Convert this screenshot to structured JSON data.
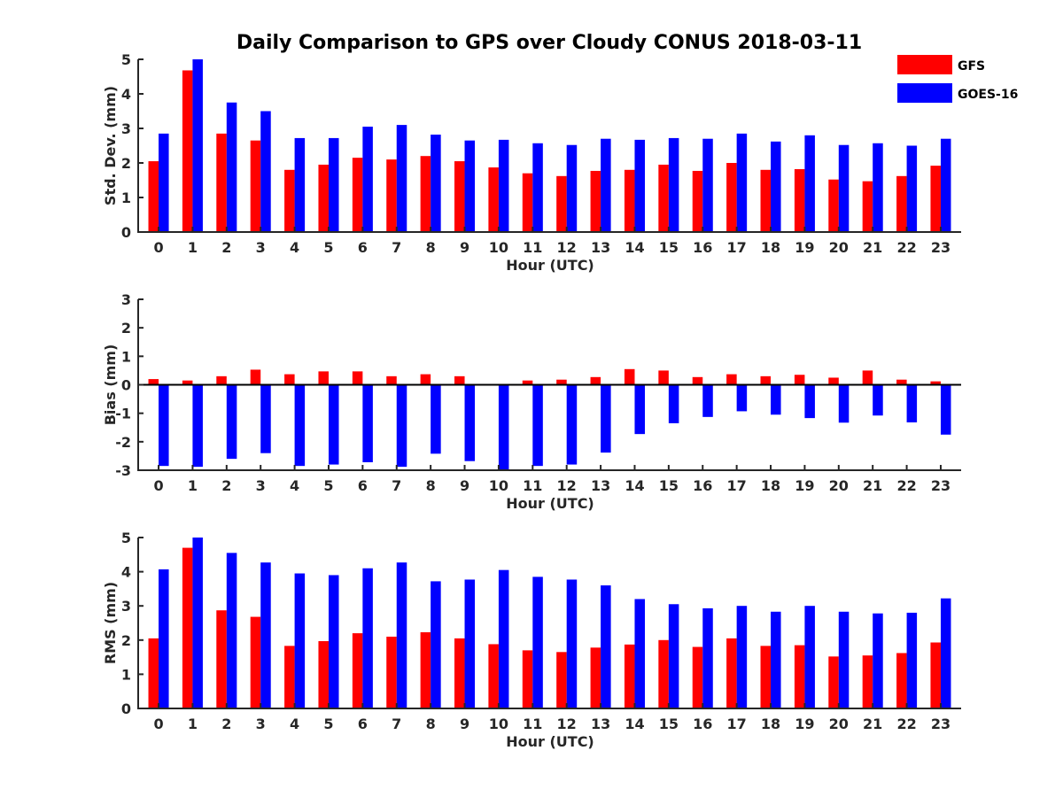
{
  "chart_data": {
    "type": "bar",
    "title": "Daily Comparison to GPS over Cloudy CONUS 2018-03-11",
    "legend": {
      "placement": "top-right",
      "entries": [
        {
          "name": "GFS",
          "color": "#ff0000"
        },
        {
          "name": "GOES-16",
          "color": "#0000ff"
        }
      ]
    },
    "categories": [
      "0",
      "1",
      "2",
      "3",
      "4",
      "5",
      "6",
      "7",
      "8",
      "9",
      "10",
      "11",
      "12",
      "13",
      "14",
      "15",
      "16",
      "17",
      "18",
      "19",
      "20",
      "21",
      "22",
      "23"
    ],
    "panels": [
      {
        "id": "std",
        "ylabel": "Std. Dev. (mm)",
        "xlabel": "Hour (UTC)",
        "ylim": [
          0,
          5
        ],
        "yticks": [
          "0",
          "1",
          "2",
          "3",
          "4",
          "5"
        ],
        "grid": false,
        "series": [
          {
            "name": "GFS",
            "color": "#ff0000",
            "values": [
              2.05,
              4.68,
              2.85,
              2.65,
              1.8,
              1.95,
              2.15,
              2.1,
              2.2,
              2.05,
              1.87,
              1.7,
              1.62,
              1.77,
              1.8,
              1.95,
              1.77,
              2.0,
              1.8,
              1.82,
              1.52,
              1.47,
              1.62,
              1.92
            ]
          },
          {
            "name": "GOES-16",
            "color": "#0000ff",
            "values": [
              2.85,
              5.0,
              3.75,
              3.5,
              2.72,
              2.72,
              3.05,
              3.1,
              2.82,
              2.65,
              2.67,
              2.57,
              2.52,
              2.7,
              2.67,
              2.72,
              2.7,
              2.85,
              2.62,
              2.8,
              2.52,
              2.57,
              2.5,
              2.7
            ]
          }
        ]
      },
      {
        "id": "bias",
        "ylabel": "Bias (mm)",
        "xlabel": "Hour (UTC)",
        "ylim": [
          -3,
          3
        ],
        "yticks": [
          "-3",
          "-2",
          "-1",
          "0",
          "1",
          "2",
          "3"
        ],
        "grid": false,
        "series": [
          {
            "name": "GFS",
            "color": "#ff0000",
            "values": [
              0.2,
              0.15,
              0.3,
              0.53,
              0.37,
              0.47,
              0.47,
              0.3,
              0.37,
              0.3,
              0.03,
              0.15,
              0.18,
              0.27,
              0.55,
              0.5,
              0.27,
              0.37,
              0.3,
              0.35,
              0.25,
              0.5,
              0.18,
              0.12
            ]
          },
          {
            "name": "GOES-16",
            "color": "#0000ff",
            "values": [
              -2.85,
              -2.88,
              -2.6,
              -2.4,
              -2.85,
              -2.8,
              -2.72,
              -2.88,
              -2.42,
              -2.68,
              -3.0,
              -2.85,
              -2.8,
              -2.38,
              -1.73,
              -1.35,
              -1.13,
              -0.93,
              -1.05,
              -1.17,
              -1.33,
              -1.08,
              -1.32,
              -1.75
            ]
          }
        ]
      },
      {
        "id": "rms",
        "ylabel": "RMS (mm)",
        "xlabel": "Hour (UTC)",
        "ylim": [
          0,
          5
        ],
        "yticks": [
          "0",
          "1",
          "2",
          "3",
          "4",
          "5"
        ],
        "grid": false,
        "series": [
          {
            "name": "GFS",
            "color": "#ff0000",
            "values": [
              2.05,
              4.7,
              2.87,
              2.68,
              1.83,
              1.97,
              2.2,
              2.1,
              2.23,
              2.05,
              1.88,
              1.7,
              1.65,
              1.78,
              1.87,
              2.0,
              1.8,
              2.05,
              1.83,
              1.85,
              1.52,
              1.55,
              1.62,
              1.93
            ]
          },
          {
            "name": "GOES-16",
            "color": "#0000ff",
            "values": [
              4.07,
              5.0,
              4.55,
              4.27,
              3.95,
              3.9,
              4.1,
              4.27,
              3.72,
              3.77,
              4.05,
              3.85,
              3.77,
              3.6,
              3.2,
              3.05,
              2.93,
              3.0,
              2.83,
              3.0,
              2.83,
              2.78,
              2.8,
              3.22
            ]
          }
        ]
      }
    ]
  }
}
